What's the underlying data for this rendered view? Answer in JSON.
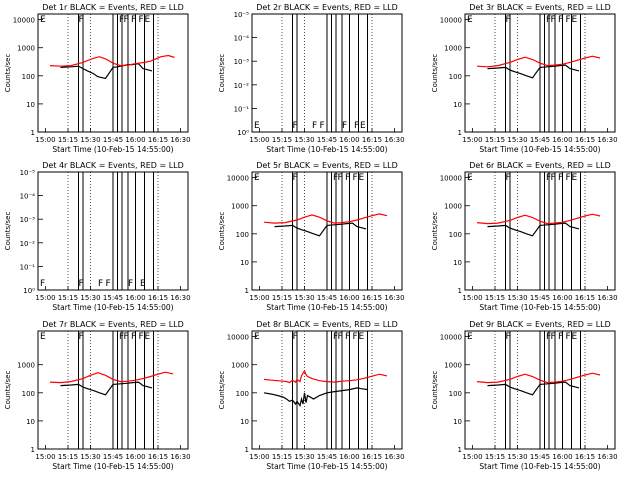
{
  "xlabel": "Start Time (10-Feb-15 14:55:00)",
  "ylabel": "Counts/sec",
  "x_ticks": [
    "15:00",
    "15:15",
    "15:30",
    "15:45",
    "16:00",
    "16:15",
    "16:30"
  ],
  "x_range_minutes": [
    -5,
    95
  ],
  "colors": {
    "events": "#000000",
    "lld": "#ff0000",
    "frame": "#000000"
  },
  "chart_data": [
    {
      "type": "line",
      "title": "Det 1r BLACK = Events, RED = LLD",
      "yscale": "log",
      "yticks": [
        "1",
        "10",
        "100",
        "1000",
        "10000"
      ],
      "flags": [
        "E",
        "F",
        "F",
        "F",
        "F",
        "F",
        "E"
      ],
      "series": [
        {
          "key": "events",
          "x": [
            10,
            17,
            22,
            25,
            28,
            32,
            34,
            34.5,
            36,
            40,
            45,
            48,
            50,
            52,
            55,
            58,
            62,
            65,
            67,
            71
          ],
          "y": [
            200,
            210,
            220,
            180,
            150,
            120,
            100,
            95,
            90,
            80,
            200,
            210,
            220,
            230,
            250,
            250,
            270,
            180,
            170,
            150
          ]
        },
        {
          "key": "lld",
          "x": [
            3,
            10,
            17,
            25,
            28,
            32,
            36,
            40,
            45,
            50,
            55,
            58,
            62,
            66,
            70,
            73,
            77,
            82,
            86
          ],
          "y": [
            230,
            220,
            230,
            300,
            350,
            420,
            480,
            400,
            280,
            230,
            240,
            260,
            280,
            300,
            330,
            390,
            480,
            530,
            450
          ]
        }
      ]
    },
    {
      "type": "line",
      "title": "Det 2r BLACK = Events, RED = LLD",
      "yscale": "log-empty",
      "yticks": [
        "10⁰",
        "10⁻¹",
        "10⁻²",
        "10⁻³",
        "10⁻⁴",
        "10⁻⁵"
      ],
      "flags": [
        "E",
        "F",
        "F",
        "F",
        "F",
        "F",
        "E"
      ],
      "series": []
    },
    {
      "type": "line",
      "title": "Det 3r BLACK = Events, RED = LLD",
      "yscale": "log",
      "yticks": [
        "1",
        "10",
        "100",
        "1000",
        "10000"
      ],
      "flags": [
        "E",
        "F",
        "F",
        "F",
        "F",
        "F",
        "E"
      ],
      "series": [
        {
          "key": "events",
          "x": [
            10,
            17,
            22,
            25,
            28,
            32,
            36,
            40,
            45,
            50,
            55,
            58,
            62,
            65,
            67,
            71
          ],
          "y": [
            180,
            190,
            200,
            160,
            140,
            120,
            100,
            85,
            200,
            210,
            220,
            230,
            240,
            180,
            170,
            150
          ]
        },
        {
          "key": "lld",
          "x": [
            3,
            10,
            17,
            25,
            30,
            35,
            40,
            45,
            50,
            55,
            60,
            65,
            70,
            75,
            80,
            85
          ],
          "y": [
            220,
            210,
            230,
            300,
            380,
            460,
            380,
            280,
            230,
            240,
            260,
            300,
            360,
            430,
            500,
            430
          ]
        }
      ]
    },
    {
      "type": "line",
      "title": "Det 4r BLACK = Events, RED = LLD",
      "yscale": "log-empty",
      "yticks": [
        "10⁰",
        "10⁻¹",
        "10⁻²",
        "10⁻³",
        "10⁻⁴",
        "10⁻⁵"
      ],
      "flags": [
        "F",
        "F",
        "F",
        "F",
        "F",
        "E"
      ],
      "series": []
    },
    {
      "type": "line",
      "title": "Det 5r BLACK = Events, RED = LLD",
      "yscale": "log",
      "yticks": [
        "1",
        "10",
        "100",
        "1000",
        "10000"
      ],
      "flags": [
        "E",
        "F",
        "F",
        "F",
        "F",
        "F",
        "E"
      ],
      "series": [
        {
          "key": "events",
          "x": [
            10,
            17,
            22,
            25,
            28,
            32,
            36,
            40,
            45,
            50,
            55,
            58,
            62,
            65,
            67,
            71
          ],
          "y": [
            180,
            190,
            200,
            160,
            140,
            120,
            100,
            85,
            200,
            210,
            220,
            230,
            240,
            180,
            170,
            150
          ]
        },
        {
          "key": "lld",
          "x": [
            3,
            10,
            17,
            25,
            30,
            35,
            40,
            45,
            50,
            55,
            60,
            65,
            70,
            75,
            80,
            85
          ],
          "y": [
            260,
            240,
            250,
            310,
            390,
            470,
            390,
            290,
            240,
            250,
            270,
            310,
            370,
            440,
            510,
            440
          ]
        }
      ]
    },
    {
      "type": "line",
      "title": "Det 6r BLACK = Events, RED = LLD",
      "yscale": "log",
      "yticks": [
        "1",
        "10",
        "100",
        "1000",
        "10000"
      ],
      "flags": [
        "E",
        "F",
        "F",
        "F",
        "F",
        "F",
        "E"
      ],
      "series": [
        {
          "key": "events",
          "x": [
            10,
            17,
            22,
            25,
            28,
            32,
            36,
            40,
            45,
            50,
            55,
            58,
            62,
            65,
            67,
            71
          ],
          "y": [
            180,
            190,
            200,
            160,
            140,
            120,
            100,
            85,
            200,
            210,
            220,
            230,
            240,
            180,
            170,
            150
          ]
        },
        {
          "key": "lld",
          "x": [
            3,
            10,
            17,
            25,
            30,
            35,
            40,
            45,
            50,
            55,
            60,
            65,
            70,
            75,
            80,
            85
          ],
          "y": [
            250,
            230,
            240,
            300,
            380,
            460,
            380,
            280,
            230,
            240,
            260,
            300,
            360,
            430,
            500,
            430
          ]
        }
      ]
    },
    {
      "type": "line",
      "title": "Det 7r BLACK = Events, RED = LLD",
      "yscale": "log",
      "yticks": [
        "1",
        "10",
        "100",
        "1000"
      ],
      "flags": [
        "E",
        "F",
        "F",
        "F",
        "F",
        "F",
        "E"
      ],
      "series": [
        {
          "key": "events",
          "x": [
            10,
            17,
            22,
            25,
            28,
            32,
            36,
            40,
            45,
            50,
            55,
            58,
            62,
            65,
            67,
            71
          ],
          "y": [
            180,
            190,
            200,
            160,
            140,
            120,
            100,
            85,
            200,
            210,
            220,
            230,
            240,
            180,
            170,
            150
          ]
        },
        {
          "key": "lld",
          "x": [
            3,
            10,
            17,
            25,
            30,
            35,
            40,
            45,
            50,
            55,
            60,
            65,
            70,
            75,
            80,
            85
          ],
          "y": [
            240,
            230,
            250,
            320,
            420,
            520,
            420,
            300,
            250,
            260,
            280,
            320,
            380,
            460,
            540,
            470
          ]
        }
      ]
    },
    {
      "type": "line",
      "title": "Det 8r BLACK = Events, RED = LLD",
      "yscale": "log",
      "yticks": [
        "1",
        "10",
        "100",
        "1000",
        "10000"
      ],
      "flags": [
        "E",
        "F",
        "F",
        "F",
        "F",
        "F",
        "E"
      ],
      "series": [
        {
          "key": "events",
          "x": [
            3,
            8,
            12,
            16,
            18,
            20,
            22,
            24,
            25,
            27,
            28,
            29,
            30,
            31,
            32,
            34,
            36,
            40,
            45,
            50,
            55,
            60,
            65,
            68,
            72
          ],
          "y": [
            100,
            90,
            80,
            70,
            60,
            50,
            55,
            40,
            50,
            35,
            60,
            40,
            100,
            45,
            80,
            70,
            60,
            80,
            100,
            110,
            120,
            130,
            150,
            140,
            130
          ]
        },
        {
          "key": "lld",
          "x": [
            3,
            8,
            12,
            16,
            18,
            20,
            22,
            24,
            25,
            27,
            28,
            29,
            30,
            31,
            32,
            35,
            40,
            45,
            50,
            55,
            60,
            65,
            70,
            75,
            80,
            85
          ],
          "y": [
            300,
            280,
            270,
            260,
            250,
            230,
            280,
            240,
            300,
            250,
            400,
            500,
            600,
            450,
            380,
            320,
            270,
            250,
            240,
            260,
            270,
            290,
            330,
            390,
            460,
            400
          ]
        }
      ]
    },
    {
      "type": "line",
      "title": "Det 9r BLACK = Events, RED = LLD",
      "yscale": "log",
      "yticks": [
        "1",
        "10",
        "100",
        "1000",
        "10000"
      ],
      "flags": [
        "E",
        "F",
        "F",
        "F",
        "F",
        "F",
        "E"
      ],
      "series": [
        {
          "key": "events",
          "x": [
            10,
            17,
            22,
            25,
            28,
            32,
            36,
            40,
            45,
            50,
            55,
            58,
            62,
            65,
            67,
            71
          ],
          "y": [
            180,
            190,
            200,
            160,
            140,
            120,
            100,
            85,
            200,
            210,
            220,
            230,
            240,
            180,
            170,
            150
          ]
        },
        {
          "key": "lld",
          "x": [
            3,
            10,
            17,
            25,
            30,
            35,
            40,
            45,
            50,
            55,
            60,
            65,
            70,
            75,
            80,
            85
          ],
          "y": [
            250,
            230,
            240,
            300,
            380,
            460,
            380,
            280,
            230,
            240,
            260,
            300,
            360,
            430,
            500,
            430
          ]
        }
      ]
    }
  ]
}
